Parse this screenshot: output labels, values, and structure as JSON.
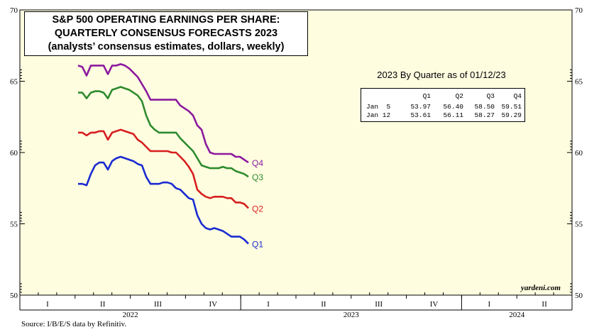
{
  "chart_data": {
    "type": "line",
    "title_lines": [
      "S&P 500 OPERATING EARNINGS PER SHARE:",
      "QUARTERLY CONSENSUS FORECASTS 2023",
      "(analysts’ consensus estimates, dollars, weekly)"
    ],
    "ylim": [
      50,
      70
    ],
    "yticks": [
      50,
      55,
      60,
      65,
      70
    ],
    "x_quarter_labels": [
      "I",
      "II",
      "III",
      "IV",
      "I",
      "II",
      "III",
      "IV",
      "I",
      "II"
    ],
    "x_year_labels": [
      "2022",
      "2023",
      "2024"
    ],
    "series": [
      {
        "name": "Q4",
        "color": "#8B1A9E",
        "values": [
          66.1,
          66.0,
          65.4,
          66.1,
          66.1,
          66.1,
          66.1,
          65.5,
          66.1,
          66.1,
          66.2,
          66.1,
          65.9,
          65.6,
          65.3,
          64.8,
          64.3,
          63.7,
          63.7,
          63.7,
          63.7,
          63.7,
          63.7,
          63.7,
          63.3,
          63.1,
          62.9,
          62.6,
          61.9,
          61.6,
          60.6,
          60.0,
          59.9,
          59.9,
          59.9,
          59.9,
          59.9,
          59.7,
          59.7,
          59.5,
          59.3
        ]
      },
      {
        "name": "Q3",
        "color": "#2E8B2E",
        "values": [
          64.2,
          64.2,
          63.8,
          64.2,
          64.3,
          64.3,
          64.2,
          63.8,
          64.4,
          64.5,
          64.6,
          64.5,
          64.4,
          64.2,
          64.0,
          63.6,
          62.6,
          61.9,
          61.6,
          61.4,
          61.4,
          61.4,
          61.4,
          61.4,
          61.0,
          60.7,
          60.4,
          60.1,
          59.6,
          59.1,
          59.0,
          58.9,
          58.9,
          58.9,
          59.0,
          58.9,
          58.9,
          58.7,
          58.6,
          58.5,
          58.3
        ]
      },
      {
        "name": "Q2",
        "color": "#D61E1E",
        "values": [
          61.4,
          61.4,
          61.2,
          61.4,
          61.4,
          61.5,
          61.5,
          60.9,
          61.4,
          61.5,
          61.6,
          61.5,
          61.4,
          61.3,
          60.9,
          60.7,
          60.4,
          60.1,
          60.1,
          60.1,
          60.1,
          60.1,
          60.0,
          60.0,
          59.7,
          59.4,
          59.0,
          58.5,
          57.4,
          57.1,
          56.9,
          56.8,
          56.9,
          56.9,
          56.9,
          56.8,
          56.8,
          56.5,
          56.5,
          56.4,
          56.1
        ]
      },
      {
        "name": "Q1",
        "color": "#1A2BD1",
        "values": [
          57.8,
          57.8,
          57.7,
          58.5,
          59.1,
          59.3,
          59.3,
          58.8,
          59.4,
          59.6,
          59.7,
          59.6,
          59.5,
          59.4,
          59.2,
          59.1,
          58.3,
          57.8,
          57.8,
          57.8,
          57.9,
          57.9,
          57.8,
          57.5,
          57.4,
          57.1,
          56.8,
          56.7,
          55.6,
          55.0,
          54.7,
          54.6,
          54.7,
          54.6,
          54.5,
          54.3,
          54.1,
          54.1,
          54.1,
          53.9,
          53.6
        ]
      }
    ],
    "table": {
      "title": "2023 By Quarter as of 01/12/23",
      "headers": [
        "Q1",
        "Q2",
        "Q3",
        "Q4"
      ],
      "rows": [
        {
          "label": "Jan  5",
          "values": [
            "53.97",
            "56.40",
            "58.50",
            "59.51"
          ]
        },
        {
          "label": "Jan 12",
          "values": [
            "53.61",
            "56.11",
            "58.27",
            "59.29"
          ]
        }
      ]
    },
    "source": "Source: I/B/E/S data by Refinitiv.",
    "brand": "yardeni.com"
  },
  "colors": {
    "plot_bg": "#FFFDE0",
    "axis": "#000000"
  }
}
